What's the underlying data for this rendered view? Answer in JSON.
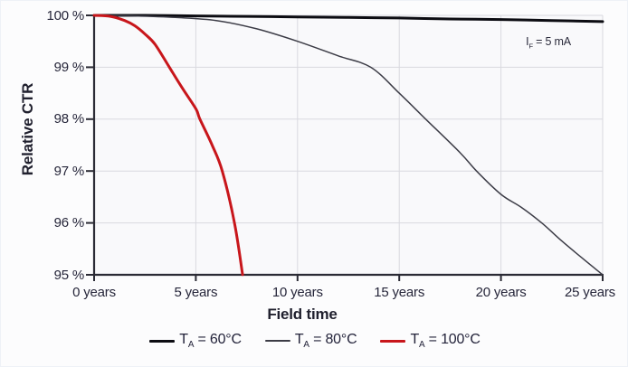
{
  "chart_data": {
    "type": "line",
    "title": "",
    "xlabel": "Field time",
    "ylabel": "Relative CTR",
    "annotation": {
      "prefix": "I",
      "sub": "F",
      "rest": " = 5 mA"
    },
    "xlim": [
      0,
      25
    ],
    "ylim": [
      95,
      100
    ],
    "grid": true,
    "legend_position": "bottom",
    "xticks": {
      "values": [
        0,
        5,
        10,
        15,
        20,
        25
      ],
      "labels": [
        "0 years",
        "5 years",
        "10 years",
        "15 years",
        "20 years",
        "25 years"
      ]
    },
    "yticks": {
      "values": [
        100,
        99,
        98,
        97,
        96,
        95
      ],
      "labels": [
        "100 %",
        "99 %",
        "98 %",
        "97 %",
        "96 %",
        "95 %"
      ]
    },
    "series": [
      {
        "id": "ta-60c",
        "name": "TA = 60°C",
        "label_prefix": "T",
        "label_sub": "A",
        "label_rest": " = 60°C",
        "color": "#0c0c12",
        "width": 3,
        "x": [
          0,
          2.5,
          5,
          7.5,
          10,
          12.5,
          15,
          17.5,
          20,
          22.5,
          25
        ],
        "y": [
          100,
          100,
          99.99,
          99.98,
          99.97,
          99.96,
          99.95,
          99.93,
          99.92,
          99.9,
          99.88
        ]
      },
      {
        "id": "ta-80c",
        "name": "TA = 80°C",
        "label_prefix": "T",
        "label_sub": "A",
        "label_rest": " = 80°C",
        "color": "#3c3c46",
        "width": 1.5,
        "x": [
          0,
          2,
          4,
          6,
          8,
          10,
          12,
          13.6,
          15,
          16.3,
          18,
          18.8,
          20,
          21,
          22,
          23,
          24,
          25
        ],
        "y": [
          100,
          99.99,
          99.96,
          99.9,
          99.74,
          99.5,
          99.22,
          99.0,
          98.5,
          98.0,
          97.35,
          97.0,
          96.55,
          96.3,
          96.0,
          95.65,
          95.32,
          95.0
        ]
      },
      {
        "id": "ta-100c",
        "name": "TA = 100°C",
        "label_prefix": "T",
        "label_sub": "A",
        "label_rest": " = 100°C",
        "color": "#c8161b",
        "width": 3,
        "x": [
          0,
          0.8,
          1.5,
          2,
          2.5,
          3,
          3.7,
          4.3,
          5,
          5.2,
          5.8,
          6.3,
          6.9,
          7.3
        ],
        "y": [
          100,
          99.98,
          99.9,
          99.8,
          99.64,
          99.44,
          99.0,
          98.62,
          98.2,
          98.0,
          97.5,
          97.0,
          96.0,
          95.0
        ]
      }
    ]
  },
  "colors": {
    "background": "#fcfcfd",
    "plot_background": "#f9f9fb",
    "grid": "#d9d9df",
    "axis": "#2b2b35",
    "text": "#23232f",
    "accent_red": "#c8161b"
  }
}
